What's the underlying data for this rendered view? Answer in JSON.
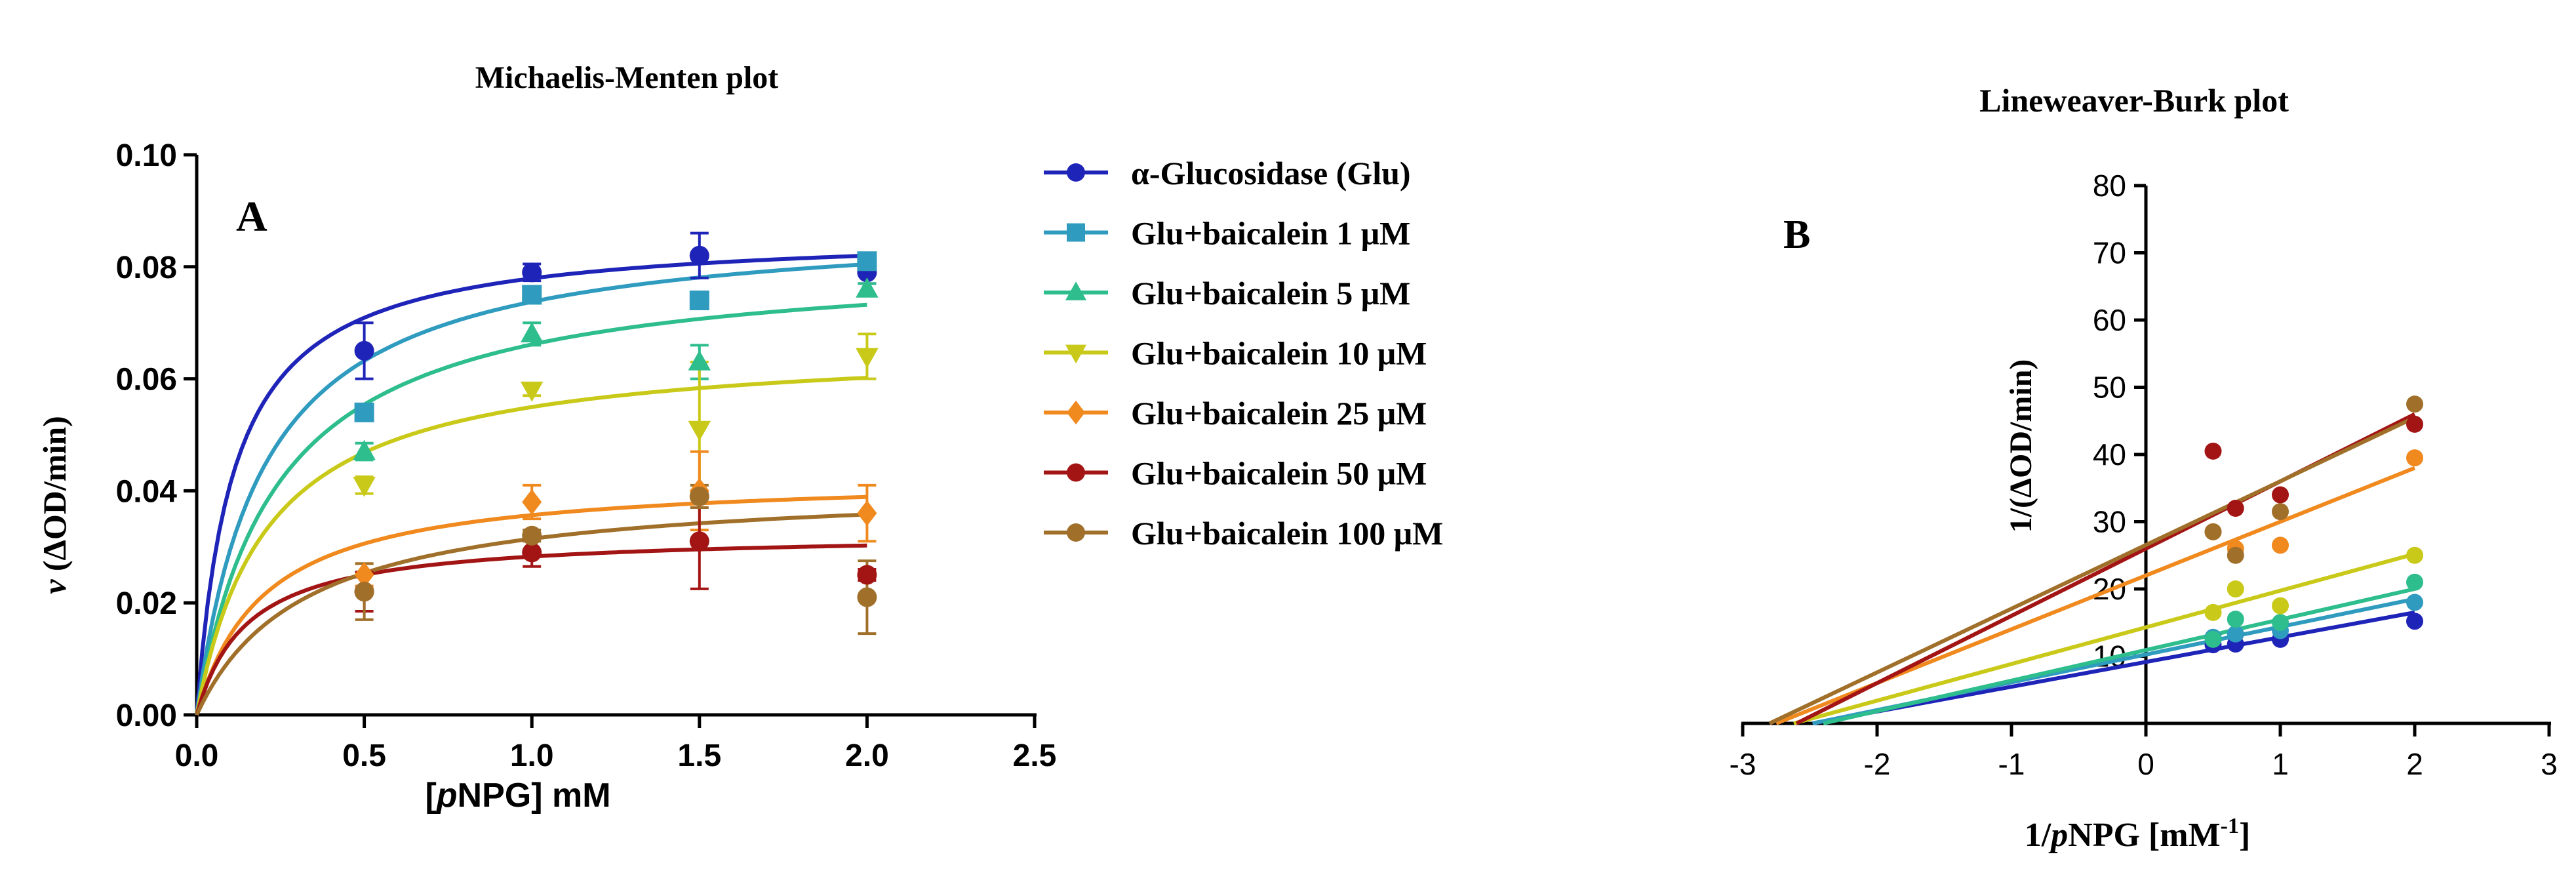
{
  "chart_data": [
    {
      "type": "scatter",
      "panel_label": "A",
      "title": "Michaelis-Menten plot",
      "xlabel_prefix": "[",
      "xlabel_italic": "p",
      "xlabel_suffix": "NPG] mM",
      "ylabel_italic": "v",
      "ylabel_rest": " (ΔOD/min)",
      "xlim": [
        0,
        2.5
      ],
      "ylim": [
        0,
        0.1
      ],
      "xticks": [
        "0.0",
        "0.5",
        "1.0",
        "1.5",
        "2.0",
        "2.5"
      ],
      "yticks": [
        "0.00",
        "0.02",
        "0.04",
        "0.06",
        "0.08",
        "0.10"
      ],
      "x": [
        0.5,
        1.0,
        1.5,
        2.0
      ],
      "series": [
        {
          "name": "α-Glucosidase (Glu)",
          "color": "#1f24b8",
          "marker": "circle",
          "values": [
            0.065,
            0.079,
            0.082,
            0.079
          ],
          "errors": [
            0.005,
            0.0015,
            0.004,
            0.002
          ],
          "fit": {
            "vmax": 0.0865,
            "km": 0.11
          }
        },
        {
          "name": "Glu+baicalein 1 μM",
          "color": "#2f9bbf",
          "marker": "square",
          "values": [
            0.054,
            0.075,
            0.074,
            0.081
          ],
          "errors": [
            0.001,
            0.0015,
            0.0015,
            0.0015
          ],
          "fit": {
            "vmax": 0.0885,
            "km": 0.2
          }
        },
        {
          "name": "Glu+baicalein 5 μM",
          "color": "#2ebd8c",
          "marker": "triangle-up",
          "values": [
            0.047,
            0.068,
            0.063,
            0.076
          ],
          "errors": [
            0.0015,
            0.002,
            0.003,
            0.001
          ],
          "fit": {
            "vmax": 0.082,
            "km": 0.24
          }
        },
        {
          "name": "Glu+baicalein 10 μM",
          "color": "#c9c919",
          "marker": "triangle-down",
          "values": [
            0.041,
            0.058,
            0.051,
            0.064
          ],
          "errors": [
            0.0015,
            0.001,
            0.012,
            0.004
          ],
          "fit": {
            "vmax": 0.0665,
            "km": 0.21
          }
        },
        {
          "name": "Glu+baicalein 25 μM",
          "color": "#f0891e",
          "marker": "diamond",
          "values": [
            0.025,
            0.038,
            0.04,
            0.036
          ],
          "errors": [
            0.002,
            0.003,
            0.007,
            0.005
          ],
          "fit": {
            "vmax": 0.0428,
            "km": 0.2
          }
        },
        {
          "name": "Glu+baicalein 50 μM",
          "color": "#a31515",
          "marker": "circle",
          "values": [
            0.022,
            0.029,
            0.031,
            0.025
          ],
          "errors": [
            0.0035,
            0.0025,
            0.0085,
            0.001
          ],
          "fit": {
            "vmax": 0.0325,
            "km": 0.15
          }
        },
        {
          "name": "Glu+baicalein 100 μM",
          "color": "#a0702a",
          "marker": "circle",
          "values": [
            0.022,
            0.032,
            0.039,
            0.021
          ],
          "errors": [
            0.005,
            0.001,
            0.002,
            0.0065
          ],
          "fit": {
            "vmax": 0.0415,
            "km": 0.32
          }
        }
      ]
    },
    {
      "type": "scatter",
      "panel_label": "B",
      "title": "Lineweaver-Burk plot",
      "xlabel_prefix": "1/",
      "xlabel_italic": "p",
      "xlabel_suffix": "NPG [mM",
      "xlabel_sup": "-1",
      "xlabel_close": "]",
      "ylabel": "1/(ΔOD/min)",
      "xlim": [
        -3,
        3
      ],
      "ylim": [
        0,
        80
      ],
      "xticks": [
        "-3",
        "-2",
        "-1",
        "0",
        "1",
        "2",
        "3"
      ],
      "yticks": [
        "10",
        "20",
        "30",
        "40",
        "50",
        "60",
        "70",
        "80"
      ],
      "x": [
        0.5,
        0.667,
        1.0,
        2.0
      ],
      "series": [
        {
          "name": "α-Glucosidase (Glu)",
          "color": "#1f24b8",
          "y": [
            11.7,
            11.8,
            12.5,
            15.2
          ],
          "line": [
            -2.48,
            2.0,
            16.5
          ]
        },
        {
          "name": "Glu+baicalein 1 μM",
          "color": "#2f9bbf",
          "y": [
            12.8,
            13.3,
            13.8,
            18.0
          ],
          "line": [
            -2.48,
            2.0,
            18.5
          ]
        },
        {
          "name": "Glu+baicalein 5 μM",
          "color": "#2ebd8c",
          "y": [
            12.5,
            15.5,
            15.0,
            21.0
          ],
          "line": [
            -2.4,
            2.0,
            20.0
          ]
        },
        {
          "name": "Glu+baicalein 10 μM",
          "color": "#c9c919",
          "y": [
            16.5,
            20.0,
            17.5,
            25.0
          ],
          "line": [
            -2.62,
            2.0,
            25.2
          ]
        },
        {
          "name": "Glu+baicalein 25 μM",
          "color": "#f0891e",
          "y": [
            28.5,
            26.0,
            26.5,
            39.5
          ],
          "line": [
            -2.75,
            2.0,
            38.0
          ]
        },
        {
          "name": "Glu+baicalein 50 μM",
          "color": "#a31515",
          "y": [
            40.5,
            32.0,
            34.0,
            44.5
          ],
          "line": [
            -2.6,
            2.0,
            46.0
          ]
        },
        {
          "name": "Glu+baicalein 100 μM",
          "color": "#a0702a",
          "y": [
            28.5,
            25.0,
            31.5,
            47.5
          ],
          "line": [
            -2.8,
            2.0,
            45.5
          ]
        }
      ]
    }
  ]
}
